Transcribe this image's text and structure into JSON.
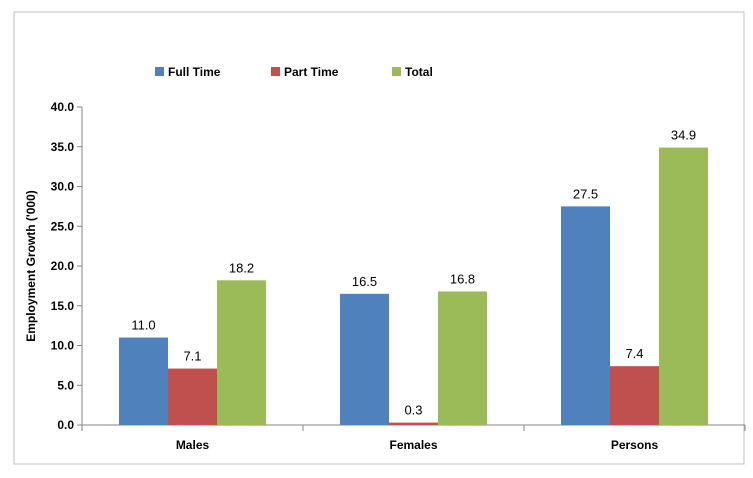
{
  "chart_data": {
    "type": "bar",
    "title": "",
    "xlabel": "",
    "ylabel": "Employment Growth ('000)",
    "categories": [
      "Males",
      "Females",
      "Persons"
    ],
    "series": [
      {
        "name": "Full Time",
        "values": [
          11.0,
          16.5,
          27.5
        ],
        "color": "#4F81BD"
      },
      {
        "name": "Part Time",
        "values": [
          7.1,
          0.3,
          7.4
        ],
        "color": "#C0504D"
      },
      {
        "name": "Total",
        "values": [
          18.2,
          16.8,
          34.9
        ],
        "color": "#9BBB59"
      }
    ],
    "ylim": [
      0,
      40
    ],
    "y_ticks": [
      "0.0",
      "5.0",
      "10.0",
      "15.0",
      "20.0",
      "25.0",
      "30.0",
      "35.0",
      "40.0"
    ],
    "value_format_decimals": 1,
    "grid": false,
    "legend_position": "top-left"
  }
}
